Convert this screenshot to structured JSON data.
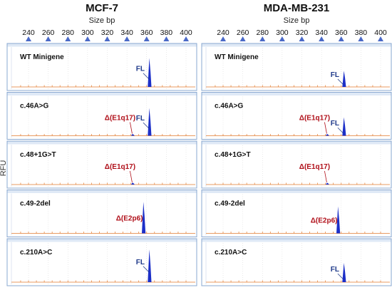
{
  "colors": {
    "peak_fl": "#1c2fc8",
    "peak_deletion": "#1c2fc8",
    "baseline": "#e07a2e",
    "arrow_marker": "#4a69c7",
    "fl_label": "#1f3a8a",
    "deletion_label": "#b0101a",
    "panel_border": "#8aa8d0",
    "panel_header": "#dfe9f6"
  },
  "chart_data": {
    "type": "electropherogram",
    "title": "",
    "xlabel": "Size bp",
    "ylabel": "RFU",
    "xlim": [
      230,
      410
    ],
    "x_ticks": [
      240,
      260,
      280,
      300,
      320,
      340,
      360,
      380,
      400
    ],
    "columns": [
      {
        "cell_line": "MCF-7",
        "panels": [
          {
            "label": "WT Minigene",
            "peaks": [
              {
                "name": "FL",
                "size": 363,
                "height": 0.75
              }
            ]
          },
          {
            "label": "c.46A>G",
            "peaks": [
              {
                "name": "FL",
                "size": 363,
                "height": 0.72
              },
              {
                "name": "Δ(E1q17)",
                "size": 346,
                "height": 0.04
              }
            ]
          },
          {
            "label": "c.48+1G>T",
            "peaks": [
              {
                "name": "Δ(E1q17)",
                "size": 346,
                "height": 0.05
              }
            ]
          },
          {
            "label": "c.49-2del",
            "peaks": [
              {
                "name": "Δ(E2p6)",
                "size": 357,
                "height": 0.82
              }
            ]
          },
          {
            "label": "c.210A>C",
            "peaks": [
              {
                "name": "FL",
                "size": 363,
                "height": 0.85
              }
            ]
          }
        ]
      },
      {
        "cell_line": "MDA-MB-231",
        "panels": [
          {
            "label": "WT Minigene",
            "peaks": [
              {
                "name": "FL",
                "size": 363,
                "height": 0.42
              }
            ]
          },
          {
            "label": "c.46A>G",
            "peaks": [
              {
                "name": "FL",
                "size": 363,
                "height": 0.48
              },
              {
                "name": "Δ(E1q17)",
                "size": 346,
                "height": 0.03
              }
            ]
          },
          {
            "label": "c.48+1G>T",
            "peaks": [
              {
                "name": "Δ(E1q17)",
                "size": 346,
                "height": 0.04
              }
            ]
          },
          {
            "label": "c.49-2del",
            "peaks": [
              {
                "name": "Δ(E2p6)",
                "size": 357,
                "height": 0.7
              }
            ]
          },
          {
            "label": "c.210A>C",
            "peaks": [
              {
                "name": "FL",
                "size": 363,
                "height": 0.5
              }
            ]
          }
        ]
      }
    ]
  }
}
